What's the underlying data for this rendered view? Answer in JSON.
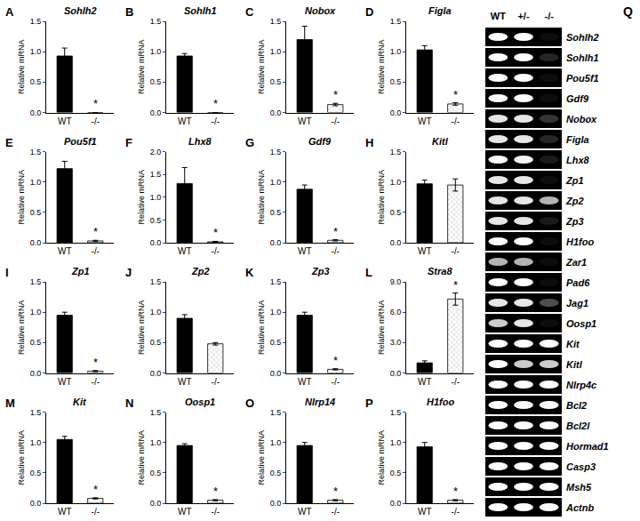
{
  "chart_data": [
    {
      "type": "bar",
      "label": "A",
      "title": "Sohlh2",
      "ylabel": "Relative mRNA",
      "categories": [
        "WT",
        "-/-"
      ],
      "values": [
        0.93,
        0.0
      ],
      "errors": [
        0.13,
        0.0
      ],
      "colors": [
        "#000000",
        "#c8c8c8"
      ],
      "ylim": [
        0,
        1.5
      ],
      "yticks": [
        {
          "value": 0,
          "label": "0.0"
        },
        0.5,
        {
          "value": 1,
          "label": "1.0"
        },
        1.5
      ],
      "grid": false,
      "annotations": [
        {
          "category": "-/-",
          "text": "*"
        }
      ]
    },
    {
      "type": "bar",
      "label": "B",
      "title": "Sohlh1",
      "ylabel": "Relative mRNA",
      "categories": [
        "WT",
        "-/-"
      ],
      "values": [
        0.93,
        0.0
      ],
      "errors": [
        0.04,
        0.0
      ],
      "colors": [
        "#000000",
        "#c8c8c8"
      ],
      "ylim": [
        0,
        1.5
      ],
      "yticks": [
        {
          "value": 0,
          "label": "0.0"
        },
        0.5,
        {
          "value": 1,
          "label": "1.0"
        },
        1.5
      ],
      "grid": false,
      "annotations": [
        {
          "category": "-/-",
          "text": "*"
        }
      ]
    },
    {
      "type": "bar",
      "label": "C",
      "title": "Nobox",
      "ylabel": "Relative mRNA",
      "categories": [
        "WT",
        "-/-"
      ],
      "values": [
        1.2,
        0.13
      ],
      "errors": [
        0.22,
        0.02
      ],
      "colors": [
        "#000000",
        "#c8c8c8"
      ],
      "ylim": [
        0,
        1.5
      ],
      "yticks": [
        {
          "value": 0,
          "label": "0.0"
        },
        0.5,
        {
          "value": 1,
          "label": "1.0"
        },
        1.5
      ],
      "grid": false,
      "annotations": [
        {
          "category": "-/-",
          "text": "*"
        }
      ]
    },
    {
      "type": "bar",
      "label": "D",
      "title": "Figla",
      "ylabel": "Relative mRNA",
      "categories": [
        "WT",
        "-/-"
      ],
      "values": [
        1.03,
        0.14
      ],
      "errors": [
        0.07,
        0.02
      ],
      "colors": [
        "#000000",
        "#c8c8c8"
      ],
      "ylim": [
        0,
        1.5
      ],
      "yticks": [
        {
          "value": 0,
          "label": "0.0"
        },
        0.5,
        {
          "value": 1,
          "label": "1.0"
        },
        1.5
      ],
      "grid": false,
      "annotations": [
        {
          "category": "-/-",
          "text": "*"
        }
      ]
    },
    {
      "type": "bar",
      "label": "E",
      "title": "Pou5f1",
      "ylabel": "Relative mRNA",
      "categories": [
        "WT",
        "-/-"
      ],
      "values": [
        1.22,
        0.03
      ],
      "errors": [
        0.12,
        0.01
      ],
      "colors": [
        "#000000",
        "#c8c8c8"
      ],
      "ylim": [
        0,
        1.5
      ],
      "yticks": [
        {
          "value": 0,
          "label": "0.0"
        },
        0.5,
        {
          "value": 1,
          "label": "1.0"
        },
        1.5
      ],
      "grid": false,
      "annotations": [
        {
          "category": "-/-",
          "text": "*"
        }
      ]
    },
    {
      "type": "bar",
      "label": "F",
      "title": "Lhx8",
      "ylabel": "Relative mRNA",
      "categories": [
        "WT",
        "-/-"
      ],
      "values": [
        1.3,
        0.02
      ],
      "errors": [
        0.35,
        0.01
      ],
      "colors": [
        "#000000",
        "#c8c8c8"
      ],
      "ylim": [
        0,
        2
      ],
      "yticks": [
        {
          "value": 0,
          "label": "0.0"
        },
        0.5,
        {
          "value": 1,
          "label": "1.0"
        },
        1.5,
        {
          "value": 2,
          "label": "2.0"
        }
      ],
      "grid": false,
      "annotations": [
        {
          "category": "-/-",
          "text": "*"
        }
      ]
    },
    {
      "type": "bar",
      "label": "G",
      "title": "Gdf9",
      "ylabel": "Relative mRNA",
      "categories": [
        "WT",
        "-/-"
      ],
      "values": [
        0.88,
        0.04
      ],
      "errors": [
        0.07,
        0.01
      ],
      "colors": [
        "#000000",
        "#c8c8c8"
      ],
      "ylim": [
        0,
        1.5
      ],
      "yticks": [
        {
          "value": 0,
          "label": "0.0"
        },
        0.5,
        {
          "value": 1,
          "label": "1.0"
        },
        1.5
      ],
      "grid": false,
      "annotations": [
        {
          "category": "-/-",
          "text": "*"
        }
      ]
    },
    {
      "type": "bar",
      "label": "H",
      "title": "Kitl",
      "ylabel": "Relative mRNA",
      "categories": [
        "WT",
        "-/-"
      ],
      "values": [
        0.97,
        0.95
      ],
      "errors": [
        0.06,
        0.1
      ],
      "colors": [
        "#000000",
        "#c8c8c8"
      ],
      "ylim": [
        0,
        1.5
      ],
      "yticks": [
        {
          "value": 0,
          "label": "0.0"
        },
        0.5,
        {
          "value": 1,
          "label": "1.0"
        },
        1.5
      ],
      "grid": false,
      "annotations": []
    },
    {
      "type": "bar",
      "label": "I",
      "title": "Zp1",
      "ylabel": "Relative mRNA",
      "categories": [
        "WT",
        "-/-"
      ],
      "values": [
        0.95,
        0.03
      ],
      "errors": [
        0.05,
        0.01
      ],
      "colors": [
        "#000000",
        "#c8c8c8"
      ],
      "ylim": [
        0,
        1.5
      ],
      "yticks": [
        {
          "value": 0,
          "label": "0.0"
        },
        0.5,
        {
          "value": 1,
          "label": "1.0"
        },
        1.5
      ],
      "grid": false,
      "annotations": [
        {
          "category": "-/-",
          "text": "*"
        }
      ]
    },
    {
      "type": "bar",
      "label": "J",
      "title": "Zp2",
      "ylabel": "Relative mRNA",
      "categories": [
        "WT",
        "-/-"
      ],
      "values": [
        0.9,
        0.48
      ],
      "errors": [
        0.06,
        0.02
      ],
      "colors": [
        "#000000",
        "#c8c8c8"
      ],
      "ylim": [
        0,
        1.5
      ],
      "yticks": [
        {
          "value": 0,
          "label": "0.0"
        },
        0.5,
        {
          "value": 1,
          "label": "1.0"
        },
        1.5
      ],
      "grid": false,
      "annotations": []
    },
    {
      "type": "bar",
      "label": "K",
      "title": "Zp3",
      "ylabel": "Relative mRNA",
      "categories": [
        "WT",
        "-/-"
      ],
      "values": [
        0.95,
        0.06
      ],
      "errors": [
        0.05,
        0.01
      ],
      "colors": [
        "#000000",
        "#c8c8c8"
      ],
      "ylim": [
        0,
        1.5
      ],
      "yticks": [
        {
          "value": 0,
          "label": "0.0"
        },
        0.5,
        {
          "value": 1,
          "label": "1.0"
        },
        1.5
      ],
      "grid": false,
      "annotations": [
        {
          "category": "-/-",
          "text": "*"
        }
      ]
    },
    {
      "type": "bar",
      "label": "L",
      "title": "Stra8",
      "ylabel": "Relative mRNA",
      "categories": [
        "WT",
        "-/-"
      ],
      "values": [
        1.0,
        7.3
      ],
      "errors": [
        0.2,
        0.6
      ],
      "colors": [
        "#000000",
        "#c8c8c8"
      ],
      "ylim": [
        0,
        9
      ],
      "yticks": [
        {
          "value": 0,
          "label": "0.0"
        },
        {
          "value": 3,
          "label": "3.0"
        },
        {
          "value": 6,
          "label": "6.0"
        },
        {
          "value": 9,
          "label": "9.0"
        }
      ],
      "grid": false,
      "annotations": [
        {
          "category": "-/-",
          "text": "*"
        }
      ]
    },
    {
      "type": "bar",
      "label": "M",
      "title": "Kit",
      "ylabel": "Relative mRNA",
      "categories": [
        "WT",
        "-/-"
      ],
      "values": [
        1.05,
        0.08
      ],
      "errors": [
        0.05,
        0.01
      ],
      "colors": [
        "#000000",
        "#c8c8c8"
      ],
      "ylim": [
        0,
        1.5
      ],
      "yticks": [
        {
          "value": 0,
          "label": "0.0"
        },
        0.5,
        {
          "value": 1,
          "label": "1.0"
        },
        1.5
      ],
      "grid": false,
      "annotations": [
        {
          "category": "-/-",
          "text": "*"
        }
      ]
    },
    {
      "type": "bar",
      "label": "N",
      "title": "Oosp1",
      "ylabel": "Relative mRNA",
      "categories": [
        "WT",
        "-/-"
      ],
      "values": [
        0.95,
        0.05
      ],
      "errors": [
        0.03,
        0.01
      ],
      "colors": [
        "#000000",
        "#c8c8c8"
      ],
      "ylim": [
        0,
        1.5
      ],
      "yticks": [
        {
          "value": 0,
          "label": "0.0"
        },
        0.5,
        {
          "value": 1,
          "label": "1.0"
        },
        1.5
      ],
      "grid": false,
      "annotations": [
        {
          "category": "-/-",
          "text": "*"
        }
      ]
    },
    {
      "type": "bar",
      "label": "O",
      "title": "Nlrp14",
      "ylabel": "Relative mRNA",
      "categories": [
        "WT",
        "-/-"
      ],
      "values": [
        0.95,
        0.05
      ],
      "errors": [
        0.05,
        0.01
      ],
      "colors": [
        "#000000",
        "#c8c8c8"
      ],
      "ylim": [
        0,
        1.5
      ],
      "yticks": [
        {
          "value": 0,
          "label": "0.0"
        },
        0.5,
        {
          "value": 1,
          "label": "1.0"
        },
        1.5
      ],
      "grid": false,
      "annotations": [
        {
          "category": "-/-",
          "text": "*"
        }
      ]
    },
    {
      "type": "bar",
      "label": "P",
      "title": "H1foo",
      "ylabel": "Relative mRNA",
      "categories": [
        "WT",
        "-/-"
      ],
      "values": [
        0.93,
        0.05
      ],
      "errors": [
        0.07,
        0.01
      ],
      "colors": [
        "#000000",
        "#c8c8c8"
      ],
      "ylim": [
        0,
        1.5
      ],
      "yticks": [
        {
          "value": 0,
          "label": "0.0"
        },
        0.5,
        {
          "value": 1,
          "label": "1.0"
        },
        1.5
      ],
      "grid": false,
      "annotations": [
        {
          "category": "-/-",
          "text": "*"
        }
      ]
    }
  ],
  "gel": {
    "label": "Q",
    "lanes": [
      "WT",
      "+/-",
      "-/-"
    ],
    "genes": [
      "Sohlh2",
      "Sohlh1",
      "Pou5f1",
      "Gdf9",
      "Nobox",
      "Figla",
      "Lhx8",
      "Zp1",
      "Zp2",
      "Zp3",
      "H1foo",
      "Zar1",
      "Pad6",
      "Jag1",
      "Oosp1",
      "Kit",
      "Kitl",
      "Nlrp4c",
      "Bcl2",
      "Bcl2l",
      "Hormad1",
      "Casp3",
      "Msh5",
      "Actnb"
    ],
    "intensity": [
      [
        1,
        1,
        0.05
      ],
      [
        1,
        1,
        0.15
      ],
      [
        1,
        1,
        0.05
      ],
      [
        1,
        1,
        0.05
      ],
      [
        0.9,
        0.9,
        0.2
      ],
      [
        0.9,
        0.9,
        0.15
      ],
      [
        1,
        0.95,
        0.1
      ],
      [
        0.9,
        0.9,
        0.05
      ],
      [
        0.9,
        0.9,
        0.7
      ],
      [
        0.9,
        0.9,
        0.1
      ],
      [
        1,
        1,
        0.05
      ],
      [
        0.7,
        0.7,
        0.05
      ],
      [
        1,
        1,
        0.05
      ],
      [
        0.9,
        0.9,
        0.3
      ],
      [
        0.8,
        0.9,
        0.05
      ],
      [
        1,
        1,
        1
      ],
      [
        1,
        0.8,
        0.8
      ],
      [
        1,
        1,
        1
      ],
      [
        1,
        1,
        1
      ],
      [
        1,
        1,
        1
      ],
      [
        1,
        1,
        1
      ],
      [
        1,
        1,
        1
      ],
      [
        1,
        1,
        1
      ],
      [
        1,
        1,
        1
      ]
    ]
  }
}
